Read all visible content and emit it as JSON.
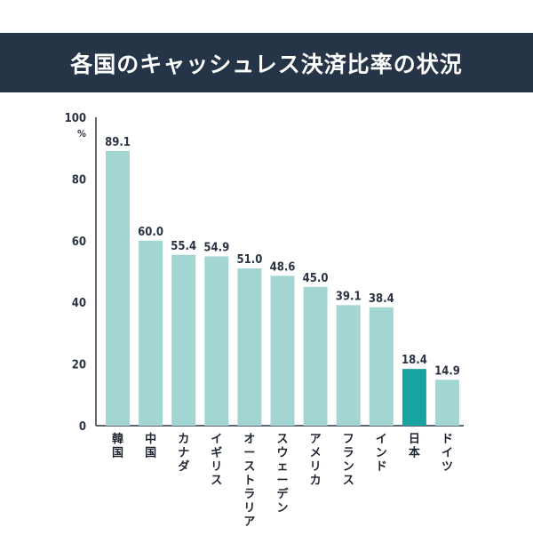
{
  "title": "各国のキャッシュレス決済比率の状況",
  "colors": {
    "banner": "#253447",
    "bar": "#a3d5d3",
    "highlight": "#17a3a0",
    "axis": "#2a3442"
  },
  "chart_data": {
    "type": "bar",
    "title": "各国のキャッシュレス決済比率の状況",
    "categories": [
      "韓国",
      "中国",
      "カナダ",
      "イギリス",
      "オーストラリア",
      "スウェーデン",
      "アメリカ",
      "フランス",
      "インド",
      "日本",
      "ドイツ"
    ],
    "values": [
      89.1,
      60.0,
      55.4,
      54.9,
      51.0,
      48.6,
      45.0,
      39.1,
      38.4,
      18.4,
      14.9
    ],
    "value_labels": [
      "89.1",
      "60.0",
      "55.4",
      "54.9",
      "51.0",
      "48.6",
      "45.0",
      "39.1",
      "38.4",
      "18.4",
      "14.9"
    ],
    "highlight_category": "日本",
    "ylim": [
      0,
      100
    ],
    "yticks": [
      "0",
      "20",
      "40",
      "60",
      "80",
      "100"
    ],
    "yunit": "%",
    "xlabel": "",
    "ylabel": "",
    "grid": false,
    "legend": "none"
  }
}
